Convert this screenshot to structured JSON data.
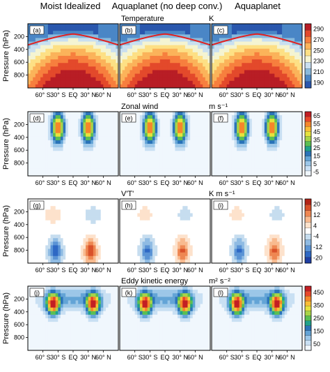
{
  "column_titles": [
    "Moist Idealized",
    "Aquaplanet (no deep conv.)",
    "Aquaplanet"
  ],
  "y_label": "Pressure (hPa)",
  "x_tick_labels": [
    "60° S",
    "30° S",
    "EQ",
    "30° N",
    "60° N"
  ],
  "y_tick_labels": [
    "200",
    "400",
    "600",
    "800"
  ],
  "colors": {
    "warm": [
      "#2a57ad",
      "#4a86c6",
      "#88b9dc",
      "#c9dff0",
      "#f4f4d2",
      "#fde085",
      "#fbb35a",
      "#f77f3e",
      "#e3492b",
      "#b81d25"
    ],
    "positive_palette": [
      "#f0f7fd",
      "#c9e0f3",
      "#9cc7e8",
      "#63a4d6",
      "#2a74b8",
      "#1fa28a",
      "#5bbf52",
      "#a9d447",
      "#e6e23d",
      "#fbbd35",
      "#f6862a",
      "#e8472a",
      "#c31f23"
    ],
    "diverging": [
      "#1f3fa3",
      "#2e68c4",
      "#5a93d5",
      "#8fbbe3",
      "#c6ddef",
      "#ffffff",
      "#fde2cc",
      "#f8ba8f",
      "#ee8752",
      "#d9512a",
      "#b22316"
    ],
    "tropopause_line": "#e12020"
  },
  "chart_data": [
    {
      "type": "heatmap",
      "title": "Temperature",
      "units": "K",
      "panel_labels": [
        "(a)",
        "(b)",
        "(c)"
      ],
      "colorbar_ticks": [
        "290",
        "270",
        "250",
        "230",
        "210",
        "190"
      ],
      "xlim": [
        -90,
        90
      ],
      "ylim": [
        1000,
        0
      ],
      "tropopause_line": true
    },
    {
      "type": "heatmap",
      "title": "Zonal wind",
      "units": "m s⁻¹",
      "panel_labels": [
        "(d)",
        "(e)",
        "(f)"
      ],
      "colorbar_ticks": [
        "65",
        "55",
        "45",
        "35",
        "25",
        "15",
        "5",
        "-5"
      ],
      "jet_centers": [
        -30,
        30
      ]
    },
    {
      "type": "heatmap",
      "title": "V'T'",
      "units": "K m s⁻¹",
      "panel_labels": [
        "(g)",
        "(h)",
        "(i)"
      ],
      "colorbar_ticks": [
        "20",
        "12",
        "4",
        "-4",
        "-12",
        "-20"
      ]
    },
    {
      "type": "heatmap",
      "title": "Eddy kinetic energy",
      "units": "m² s⁻²",
      "panel_labels": [
        "(j)",
        "(k)",
        "(l)"
      ],
      "colorbar_ticks": [
        "450",
        "350",
        "250",
        "150",
        "50"
      ]
    }
  ]
}
